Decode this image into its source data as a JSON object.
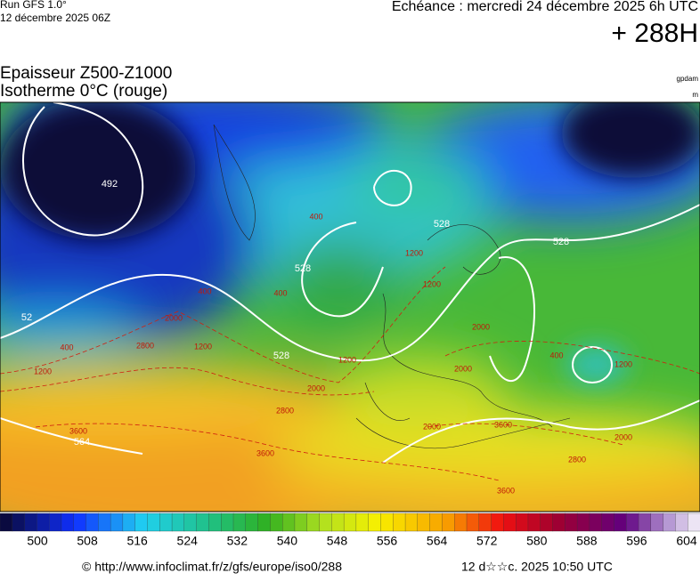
{
  "header": {
    "run": "Run GFS 1.0°",
    "date": "12 décembre 2025 06Z",
    "echeance": "Echéance : mercredi 24 décembre 2025 6h UTC",
    "lead": "+ 288H"
  },
  "title": {
    "line1": "Epaisseur Z500-Z1000",
    "line2": "Isotherme 0°C (rouge)",
    "unit1": "gpdam",
    "unit2": "m"
  },
  "map": {
    "thickness_labels": [
      "492",
      "528",
      "528",
      "528",
      "528",
      "52",
      "564"
    ],
    "isotherm_labels": [
      "400",
      "400",
      "400",
      "400",
      "400",
      "1200",
      "1200",
      "1200",
      "1200",
      "1200",
      "1200",
      "2000",
      "2000",
      "2000",
      "2000",
      "2000",
      "2000",
      "2800",
      "2800",
      "2800",
      "3600",
      "3600",
      "3600",
      "3600"
    ]
  },
  "colorbar": {
    "ticks": [
      500,
      508,
      516,
      524,
      532,
      540,
      548,
      556,
      564,
      572,
      580,
      588,
      596,
      604
    ]
  },
  "footer": {
    "url": "© http://www.infoclimat.fr/z/gfs/europe/iso0/288",
    "stamp": "12 d☆☆c. 2025 10:50 UTC"
  }
}
